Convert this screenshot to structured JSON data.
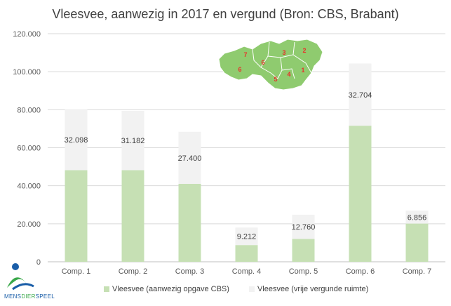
{
  "chart_data": {
    "type": "bar",
    "stacked": true,
    "title": "Vleesvee, aanwezig in 2017 en vergund (Bron: CBS, Brabant)",
    "categories": [
      "Comp. 1",
      "Comp. 2",
      "Comp. 3",
      "Comp. 4",
      "Comp. 5",
      "Comp. 6",
      "Comp. 7"
    ],
    "series": [
      {
        "name": "Vleesvee (aanwezig opgave CBS)",
        "color": "#c6e0b4",
        "values": [
          48200,
          48200,
          41000,
          8800,
          12000,
          71600,
          20100
        ]
      },
      {
        "name": "Vleesvee (vrije vergunde ruimte)",
        "color": "#f2f2f2",
        "values": [
          32098,
          31182,
          27400,
          9212,
          12760,
          32704,
          6856
        ]
      }
    ],
    "data_labels": [
      "32.098",
      "31.182",
      "27.400",
      "9.212",
      "12.760",
      "32.704",
      "6.856"
    ],
    "ylim": [
      0,
      120000
    ],
    "yticks": [
      "0",
      "20.000",
      "40.000",
      "60.000",
      "80.000",
      "100.000",
      "120.000"
    ],
    "grid": true,
    "legend_position": "bottom",
    "xlabel": "",
    "ylabel": ""
  },
  "map": {
    "fill": "#8fcb6f",
    "label_color": "#e8312b",
    "labels": [
      "7",
      "3",
      "2",
      "6",
      "6",
      "5",
      "4",
      "1"
    ]
  },
  "logo": {
    "text_parts": [
      "MENS",
      "DIER",
      "SPEEL"
    ]
  }
}
